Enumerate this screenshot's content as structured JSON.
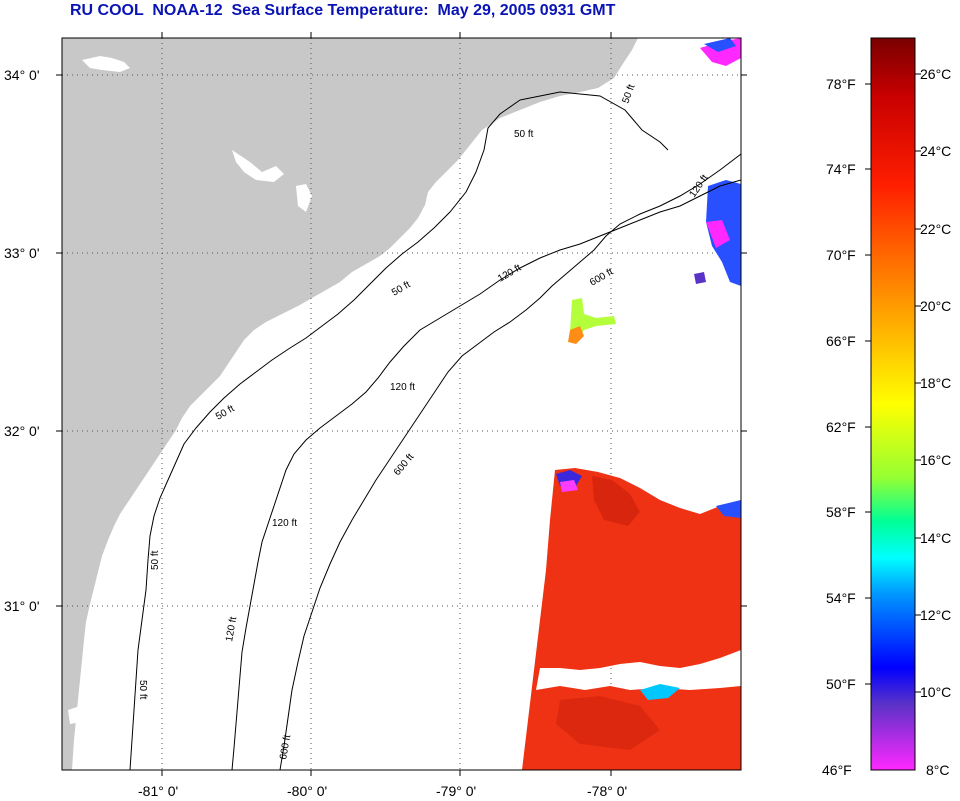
{
  "title": "RU COOL  NOAA-12  Sea Surface Temperature:  May 29, 2005 0931 GMT",
  "map": {
    "lat_labels": [
      "34° 0'",
      "33° 0'",
      "32° 0'",
      "31° 0'"
    ],
    "lon_labels": [
      "-81° 0'",
      "-80° 0'",
      "-79° 0'",
      "-78° 0'"
    ],
    "contour_labels": [
      "50 ft",
      "50 ft",
      "50 ft",
      "50 ft",
      "50 ft",
      "50 ft",
      "120 ft",
      "120 ft",
      "120 ft",
      "120 ft",
      "120 ft",
      "600 ft",
      "600 ft",
      "600 ft"
    ],
    "colors": {
      "land": "#c8c8c8",
      "ocean": "#ffffff",
      "warm_water": "#f03214",
      "contour": "#000000"
    }
  },
  "colorbar": {
    "fahrenheit_labels": [
      "78°F",
      "74°F",
      "70°F",
      "66°F",
      "62°F",
      "58°F",
      "54°F",
      "50°F",
      "46°F"
    ],
    "celsius_labels": [
      "26°C",
      "24°C",
      "22°C",
      "20°C",
      "18°C",
      "16°C",
      "14°C",
      "12°C",
      "10°C",
      "8°C"
    ],
    "gradient_stops": [
      "#7a0000",
      "#c80000",
      "#ff1e00",
      "#ff6a00",
      "#ffb400",
      "#ffff00",
      "#96ff32",
      "#00ff96",
      "#00ffff",
      "#0096ff",
      "#0000ff",
      "#5a32c8",
      "#ff28ff"
    ]
  }
}
